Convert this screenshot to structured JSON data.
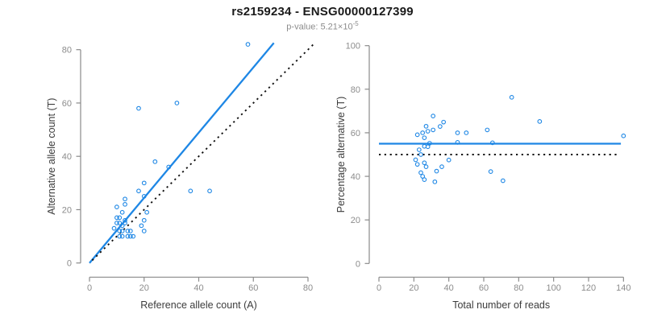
{
  "header": {
    "title": "rs2159234 - ENSG00000127399",
    "subtitle_prefix": "p-value: ",
    "subtitle_value": "5.21×10",
    "subtitle_exponent": "-5"
  },
  "colors": {
    "accent_blue": "#1E87E5",
    "line_black": "#111111",
    "axis_gray": "#8a8a8a",
    "tick_label_gray": "#8c8c8c",
    "axis_title_dark": "#3c3c3c"
  },
  "chart_data": [
    {
      "type": "scatter",
      "panel": "left",
      "xlabel": "Reference allele count (A)",
      "ylabel": "Alternative allele count (T)",
      "xlim": [
        0,
        80
      ],
      "ylim": [
        0,
        80
      ],
      "xticks": [
        0,
        20,
        40,
        60,
        80
      ],
      "yticks": [
        0,
        20,
        40,
        60,
        80
      ],
      "grid": false,
      "marker": "open-circle",
      "points": [
        [
          58,
          82
        ],
        [
          18,
          58
        ],
        [
          32,
          60
        ],
        [
          24,
          38
        ],
        [
          29,
          36
        ],
        [
          20,
          30
        ],
        [
          18,
          27
        ],
        [
          13,
          24
        ],
        [
          10,
          21
        ],
        [
          13,
          22
        ],
        [
          12,
          19
        ],
        [
          10,
          17
        ],
        [
          11,
          17
        ],
        [
          13,
          16
        ],
        [
          10,
          15
        ],
        [
          11,
          15
        ],
        [
          12,
          14
        ],
        [
          13,
          15
        ],
        [
          20,
          16
        ],
        [
          19,
          14
        ],
        [
          9,
          13
        ],
        [
          11,
          12
        ],
        [
          12,
          12
        ],
        [
          14,
          12
        ],
        [
          15,
          12
        ],
        [
          20,
          12
        ],
        [
          11,
          10
        ],
        [
          12,
          10
        ],
        [
          14,
          10
        ],
        [
          15,
          10
        ],
        [
          16,
          10
        ],
        [
          21,
          19
        ],
        [
          20,
          25
        ],
        [
          37,
          27
        ],
        [
          44,
          27
        ]
      ],
      "lines": [
        {
          "name": "fit-line",
          "style": "solid",
          "color_key": "accent_blue",
          "points": [
            [
              0,
              0
            ],
            [
              67.5,
              82.5
            ]
          ]
        },
        {
          "name": "identity-line",
          "style": "dotted",
          "color_key": "line_black",
          "points": [
            [
              1,
              1
            ],
            [
              82,
              82
            ]
          ]
        }
      ]
    },
    {
      "type": "scatter",
      "panel": "right",
      "xlabel": "Total number of reads",
      "ylabel": "Percentage alternative (T)",
      "xlim": [
        0,
        140
      ],
      "ylim": [
        0,
        100
      ],
      "xticks": [
        0,
        20,
        40,
        60,
        80,
        100,
        120,
        140
      ],
      "yticks": [
        0,
        20,
        40,
        60,
        80,
        100
      ],
      "grid": false,
      "marker": "open-circle",
      "points": [
        [
          140,
          58.6
        ],
        [
          76,
          76.3
        ],
        [
          92,
          65.2
        ],
        [
          62,
          61.3
        ],
        [
          65,
          55.4
        ],
        [
          50,
          60.0
        ],
        [
          45,
          60.0
        ],
        [
          37,
          64.9
        ],
        [
          31,
          67.7
        ],
        [
          35,
          62.9
        ],
        [
          31,
          61.3
        ],
        [
          27,
          63.0
        ],
        [
          28,
          60.7
        ],
        [
          29,
          55.2
        ],
        [
          25,
          60.0
        ],
        [
          26,
          57.7
        ],
        [
          26,
          53.8
        ],
        [
          28,
          53.6
        ],
        [
          36,
          44.4
        ],
        [
          33,
          42.4
        ],
        [
          22,
          59.1
        ],
        [
          23,
          52.2
        ],
        [
          24,
          50.0
        ],
        [
          26,
          46.2
        ],
        [
          27,
          44.4
        ],
        [
          32,
          37.5
        ],
        [
          21,
          47.6
        ],
        [
          22,
          45.5
        ],
        [
          24,
          41.7
        ],
        [
          25,
          40.0
        ],
        [
          26,
          38.5
        ],
        [
          40,
          47.5
        ],
        [
          45,
          55.6
        ],
        [
          64,
          42.2
        ],
        [
          71,
          38.0
        ]
      ],
      "lines": [
        {
          "name": "mean-line",
          "style": "solid",
          "color_key": "accent_blue",
          "points": [
            [
              0,
              55
            ],
            [
              138.5,
              55
            ]
          ]
        },
        {
          "name": "null-line",
          "style": "dotted",
          "color_key": "line_black",
          "points": [
            [
              0,
              50
            ],
            [
              137.7,
              50
            ]
          ]
        }
      ]
    }
  ]
}
